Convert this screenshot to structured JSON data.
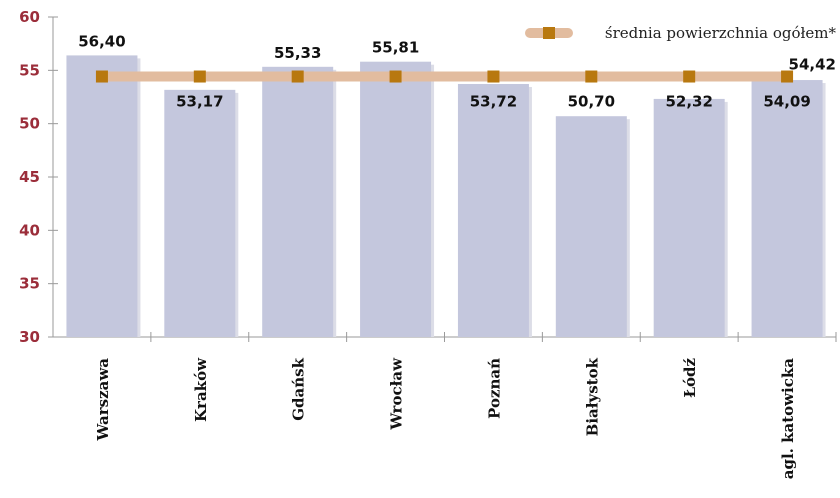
{
  "chart_data": {
    "type": "bar",
    "title": "",
    "xlabel": "",
    "ylabel": "",
    "ylim": [
      30,
      60
    ],
    "yticks": [
      30,
      35,
      40,
      45,
      50,
      55,
      60
    ],
    "categories": [
      "Warszawa",
      "Kraków",
      "Gdańsk",
      "Wrocław",
      "Poznań",
      "Białystok",
      "Łódź",
      "agl. katowicka"
    ],
    "series": [
      {
        "type": "bar",
        "values": [
          56.4,
          53.17,
          55.33,
          55.81,
          53.72,
          50.7,
          52.32,
          54.09
        ],
        "value_labels": [
          "56,40",
          "53,17",
          "55,33",
          "55,81",
          "53,72",
          "50,70",
          "52,32",
          "54,09"
        ]
      },
      {
        "type": "line",
        "name": "średnia powierzchnia ogółem*",
        "value": 54.42,
        "value_label": "54,42"
      }
    ],
    "legend": "top-right",
    "colors": {
      "bar": "#c4c7dd",
      "bar_shadow": "#dcdde7",
      "line": "#e2bc9f",
      "marker": "#b8780f",
      "ytick": "#9b2d3a",
      "axis": "#9a9a9a"
    }
  }
}
